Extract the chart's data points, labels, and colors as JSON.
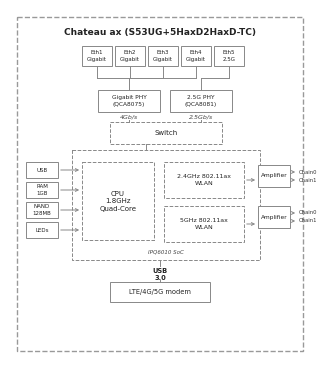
{
  "title": "Chateau ax (S53UG+5HaxD2HaxD-TC)",
  "eth_labels": [
    "Eth1\nGigabit",
    "Eth2\nGigabit",
    "Eth3\nGigabit",
    "Eth4\nGigabit",
    "Eth5\n2.5G"
  ],
  "phy_left_label": "Gigabit PHY\n(QCA8075)",
  "phy_right_label": "2.5G PHY\n(QCA8081)",
  "speed_left": "4Gb/s",
  "speed_right": "2.5Gb/s",
  "switch_label": "Switch",
  "cpu_label": "CPU\n1.8GHz\nQuad-Core",
  "soc_label": "IPQ6010 SoC",
  "wlan24_label": "2.4GHz 802.11ax\nWLAN",
  "wlan5_label": "5GHz 802.11ax\nWLAN",
  "amp_label": "Amplifier",
  "left_boxes": [
    "USB",
    "RAM\n1GB",
    "NAND\n128MB",
    "LEDs"
  ],
  "usb30_label": "USB\n3.0",
  "modem_label": "LTE/4G/5G modem",
  "chain_labels_24": [
    "Chain0",
    "Chain1"
  ],
  "chain_labels_5": [
    "Chain0",
    "Chain1"
  ]
}
